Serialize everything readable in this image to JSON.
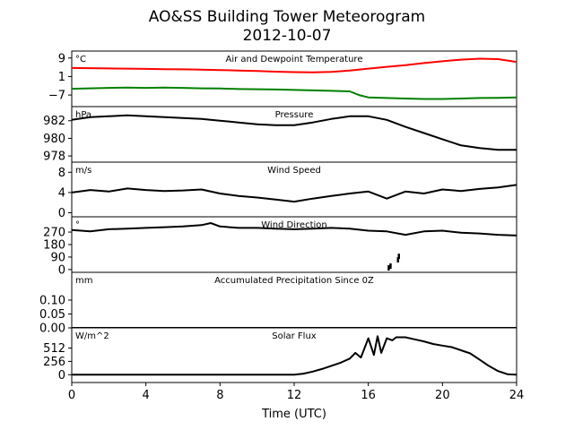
{
  "figure": {
    "title": "AO&SS Building Tower Meteorogram",
    "subtitle": "2012-10-07",
    "xlabel": "Time (UTC)"
  },
  "chart_data": {
    "type": "line",
    "title": "AO&SS Building Tower Meteorogram",
    "subtitle": "2012-10-07",
    "xlabel": "Time (UTC)",
    "xlim": [
      0,
      24
    ],
    "xticks": [
      0,
      4,
      8,
      12,
      16,
      20,
      24
    ],
    "panels": [
      {
        "id": "temperature",
        "title": "Air and Dewpoint Temperature",
        "unit": "°C",
        "ylim": [
          -12,
          12
        ],
        "yticks": [
          9,
          1,
          -7
        ],
        "series": [
          {
            "name": "",
            "color": "#ff0000",
            "x": [
              0,
              1,
              2,
              3,
              4,
              5,
              6,
              7,
              8,
              9,
              10,
              11,
              12,
              13,
              14,
              15,
              16,
              17,
              18,
              19,
              20,
              21,
              22,
              23,
              24
            ],
            "y": [
              4.7,
              4.6,
              4.5,
              4.4,
              4.3,
              4.2,
              4.1,
              4.0,
              3.8,
              3.6,
              3.4,
              3.1,
              2.9,
              2.8,
              3.0,
              3.6,
              4.4,
              5.2,
              5.9,
              6.8,
              7.6,
              8.3,
              8.7,
              8.5,
              7.3
            ]
          },
          {
            "name": "",
            "color": "#008000",
            "x": [
              0,
              1,
              2,
              3,
              4,
              5,
              6,
              7,
              8,
              9,
              10,
              11,
              12,
              13,
              14,
              15,
              15.5,
              16,
              17,
              18,
              19,
              20,
              21,
              22,
              23,
              24
            ],
            "y": [
              -4.3,
              -4.1,
              -3.9,
              -3.8,
              -3.9,
              -3.8,
              -3.9,
              -4.1,
              -4.2,
              -4.4,
              -4.5,
              -4.6,
              -4.8,
              -5.0,
              -5.2,
              -5.4,
              -7.0,
              -8.0,
              -8.3,
              -8.5,
              -8.7,
              -8.7,
              -8.5,
              -8.3,
              -8.2,
              -8.0
            ]
          }
        ]
      },
      {
        "id": "pressure",
        "title": "Pressure",
        "unit": "hPa",
        "ylim": [
          977.3,
          983.6
        ],
        "yticks": [
          982,
          980,
          978
        ],
        "series": [
          {
            "name": "",
            "color": "#000000",
            "x": [
              0,
              1,
              2,
              3,
              4,
              5,
              6,
              7,
              8,
              9,
              10,
              11,
              12,
              13,
              14,
              15,
              16,
              17,
              18,
              19,
              20,
              21,
              22,
              23,
              24
            ],
            "y": [
              982.1,
              982.4,
              982.5,
              982.6,
              982.5,
              982.4,
              982.3,
              982.2,
              982.0,
              981.8,
              981.6,
              981.5,
              981.5,
              981.8,
              982.2,
              982.5,
              982.5,
              982.1,
              981.3,
              980.6,
              979.9,
              979.2,
              978.9,
              978.7,
              978.7
            ]
          }
        ]
      },
      {
        "id": "wind_speed",
        "title": "Wind Speed",
        "unit": "m/s",
        "ylim": [
          -0.8,
          10
        ],
        "yticks": [
          8,
          4,
          0
        ],
        "series": [
          {
            "name": "",
            "color": "#000000",
            "x": [
              0,
              1,
              2,
              3,
              4,
              5,
              6,
              7,
              8,
              9,
              10,
              11,
              12,
              13,
              14,
              15,
              16,
              17,
              18,
              19,
              20,
              21,
              22,
              23,
              24
            ],
            "y": [
              4.0,
              4.5,
              4.2,
              4.8,
              4.5,
              4.3,
              4.4,
              4.6,
              3.8,
              3.3,
              3.0,
              2.6,
              2.2,
              2.8,
              3.3,
              3.8,
              4.2,
              2.8,
              4.2,
              3.8,
              4.6,
              4.3,
              4.7,
              5.0,
              5.5
            ]
          }
        ]
      },
      {
        "id": "wind_direction",
        "title": "Wind Direction",
        "unit": "°",
        "ylim": [
          -20,
          380
        ],
        "yticks": [
          270,
          180,
          90,
          0
        ],
        "series": [
          {
            "name": "",
            "color": "#000000",
            "x": [
              0,
              1,
              2,
              3,
              4,
              5,
              6,
              7,
              7.5,
              8,
              9,
              10,
              11,
              12,
              13,
              14,
              15,
              16,
              17,
              18,
              19,
              20,
              21,
              22,
              23,
              24
            ],
            "y": [
              285,
              275,
              290,
              295,
              300,
              305,
              310,
              320,
              335,
              310,
              300,
              300,
              295,
              290,
              295,
              300,
              295,
              280,
              275,
              250,
              275,
              280,
              265,
              260,
              250,
              245
            ]
          },
          {
            "name": "",
            "color": "#000000",
            "style": "points",
            "x": [
              17.1,
              17.2,
              17.6,
              17.65
            ],
            "y": [
              12,
              25,
              70,
              95
            ]
          }
        ]
      },
      {
        "id": "precipitation",
        "title": "Accumulated Precipitation Since 0Z",
        "unit": "mm",
        "ylim": [
          0,
          0.2
        ],
        "yticks": [
          0.1,
          0.05,
          0.0
        ],
        "series": [
          {
            "name": "",
            "color": "#000000",
            "x": [
              0,
              24
            ],
            "y": [
              0,
              0
            ]
          }
        ]
      },
      {
        "id": "solar_flux",
        "title": "Solar Flux",
        "unit": "W/m^2",
        "ylim": [
          -150,
          900
        ],
        "yticks": [
          512,
          256,
          0
        ],
        "series": [
          {
            "name": "",
            "color": "#000000",
            "x": [
              0,
              4,
              8,
              12,
              12.5,
              13,
              13.5,
              14,
              14.5,
              15,
              15.3,
              15.6,
              16,
              16.3,
              16.5,
              16.7,
              17,
              17.3,
              17.5,
              18,
              18.5,
              19,
              19.5,
              20,
              20.5,
              21,
              21.5,
              22,
              22.5,
              23,
              23.5,
              24
            ],
            "y": [
              0,
              0,
              0,
              0,
              20,
              60,
              110,
              170,
              230,
              310,
              420,
              330,
              700,
              380,
              740,
              420,
              700,
              660,
              720,
              720,
              680,
              640,
              590,
              560,
              530,
              470,
              410,
              290,
              170,
              70,
              10,
              0
            ]
          }
        ]
      }
    ]
  }
}
